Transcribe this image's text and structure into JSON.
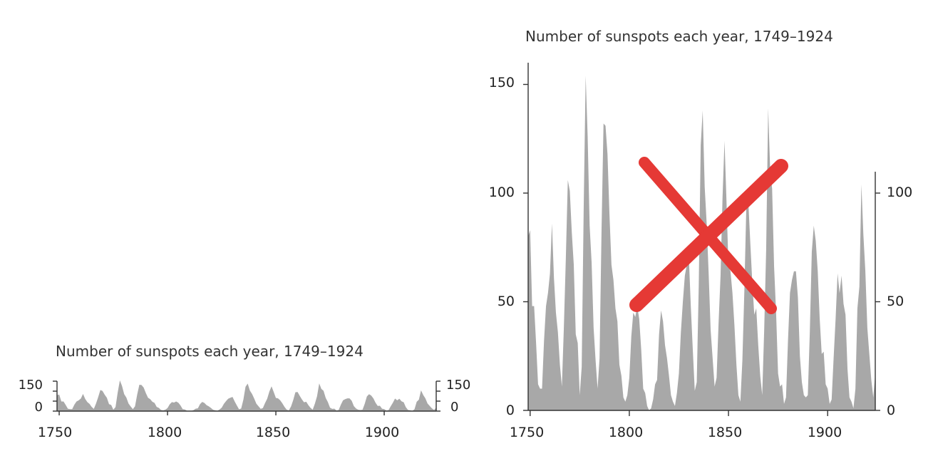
{
  "chart_data": [
    {
      "type": "area",
      "title": "Number of sunspots each year, 1749–1924",
      "xlabel": "",
      "ylabel": "",
      "xlim": [
        1749,
        1924
      ],
      "ylim": [
        0,
        150
      ],
      "x_ticks": [
        "1750",
        "1800",
        "1850",
        "1900"
      ],
      "y_ticks_left": [
        "0",
        "150"
      ],
      "y_ticks_right": [
        "0",
        "150"
      ],
      "fill_color": "#a8a8a8",
      "series": [
        {
          "x": [
            1749,
            1750,
            1751,
            1752,
            1753,
            1754,
            1755,
            1756,
            1757,
            1758,
            1759,
            1760,
            1761,
            1762,
            1763,
            1764,
            1765,
            1766,
            1767,
            1768,
            1769,
            1770,
            1771,
            1772,
            1773,
            1774,
            1775,
            1776,
            1777,
            1778,
            1779,
            1780,
            1781,
            1782,
            1783,
            1784,
            1785,
            1786,
            1787,
            1788,
            1789,
            1790,
            1791,
            1792,
            1793,
            1794,
            1795,
            1796,
            1797,
            1798,
            1799,
            1800,
            1801,
            1802,
            1803,
            1804,
            1805,
            1806,
            1807,
            1808,
            1809,
            1810,
            1811,
            1812,
            1813,
            1814,
            1815,
            1816,
            1817,
            1818,
            1819,
            1820,
            1821,
            1822,
            1823,
            1824,
            1825,
            1826,
            1827,
            1828,
            1829,
            1830,
            1831,
            1832,
            1833,
            1834,
            1835,
            1836,
            1837,
            1838,
            1839,
            1840,
            1841,
            1842,
            1843,
            1844,
            1845,
            1846,
            1847,
            1848,
            1849,
            1850,
            1851,
            1852,
            1853,
            1854,
            1855,
            1856,
            1857,
            1858,
            1859,
            1860,
            1861,
            1862,
            1863,
            1864,
            1865,
            1866,
            1867,
            1868,
            1869,
            1870,
            1871,
            1872,
            1873,
            1874,
            1875,
            1876,
            1877,
            1878,
            1879,
            1880,
            1881,
            1882,
            1883,
            1884,
            1885,
            1886,
            1887,
            1888,
            1889,
            1890,
            1891,
            1892,
            1893,
            1894,
            1895,
            1896,
            1897,
            1898,
            1899,
            1900,
            1901,
            1902,
            1903,
            1904,
            1905,
            1906,
            1907,
            1908,
            1909,
            1910,
            1911,
            1912,
            1913,
            1914,
            1915,
            1916,
            1917,
            1918,
            1919,
            1920,
            1921,
            1922,
            1923,
            1924
          ],
          "values": [
            80,
            83,
            48,
            48,
            31,
            12,
            10,
            10,
            32,
            48,
            54,
            63,
            86,
            61,
            45,
            36,
            21,
            11,
            38,
            70,
            106,
            101,
            82,
            67,
            35,
            31,
            7,
            20,
            93,
            154,
            126,
            85,
            68,
            38,
            23,
            10,
            24,
            83,
            132,
            131,
            118,
            90,
            67,
            60,
            47,
            41,
            21,
            16,
            6,
            4,
            7,
            15,
            34,
            45,
            43,
            48,
            42,
            28,
            10,
            8,
            2,
            0,
            1,
            5,
            12,
            14,
            35,
            46,
            41,
            30,
            24,
            16,
            7,
            4,
            2,
            8,
            17,
            36,
            50,
            62,
            67,
            71,
            48,
            28,
            9,
            13,
            57,
            122,
            138,
            103,
            86,
            63,
            37,
            24,
            11,
            15,
            40,
            62,
            98,
            124,
            96,
            66,
            64,
            54,
            39,
            21,
            7,
            4,
            23,
            55,
            94,
            96,
            77,
            59,
            44,
            47,
            30,
            16,
            7,
            37,
            74,
            139,
            111,
            102,
            66,
            45,
            17,
            11,
            12,
            3,
            6,
            32,
            54,
            60,
            64,
            64,
            52,
            25,
            13,
            7,
            6,
            7,
            36,
            73,
            85,
            78,
            64,
            42,
            26,
            27,
            12,
            10,
            3,
            5,
            24,
            42,
            63,
            54,
            62,
            49,
            44,
            19,
            6,
            4,
            1,
            10,
            47,
            57,
            104,
            81,
            64,
            38,
            26,
            14,
            6,
            17
          ]
        }
      ]
    },
    {
      "type": "area",
      "title": "Number of sunspots each year, 1749–1924",
      "xlabel": "",
      "ylabel": "",
      "xlim": [
        1749,
        1924
      ],
      "ylim": [
        0,
        160
      ],
      "x_ticks": [
        "1750",
        "1800",
        "1850",
        "1900"
      ],
      "y_ticks_left": [
        "0",
        "50",
        "100",
        "150"
      ],
      "y_ticks_right": [
        "0",
        "50",
        "100"
      ],
      "fill_color": "#a8a8a8",
      "overlay_mark": {
        "shape": "cross",
        "color": "#e53935"
      },
      "series": [
        {
          "x": "same as first chart",
          "values": "same as first chart"
        }
      ]
    }
  ]
}
